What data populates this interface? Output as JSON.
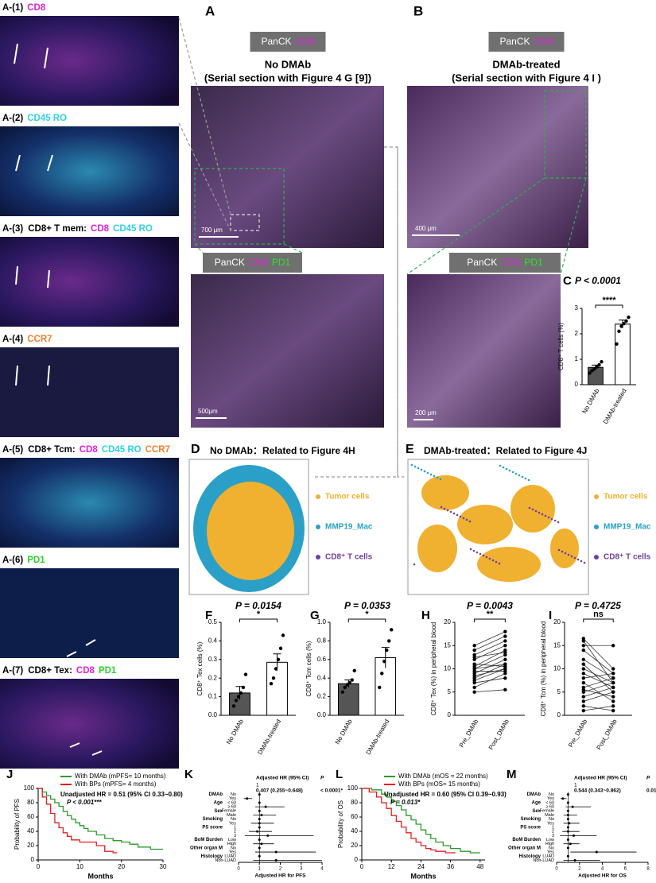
{
  "tiles": [
    {
      "id": "A-(1)",
      "markers": [
        {
          "text": "CD8",
          "color": "#e020e0"
        }
      ]
    },
    {
      "id": "A-(2)",
      "markers": [
        {
          "text": "CD45 RO",
          "color": "#30d0e0"
        }
      ]
    },
    {
      "id": "A-(3)",
      "prefix": "CD8+ T mem:",
      "markers": [
        {
          "text": "CD8",
          "color": "#e020e0"
        },
        {
          "text": "CD45 RO",
          "color": "#30d0e0"
        }
      ]
    },
    {
      "id": "A-(4)",
      "markers": [
        {
          "text": "CCR7",
          "color": "#f08030"
        }
      ]
    },
    {
      "id": "A-(5)",
      "prefix": "CD8+ Tcm:",
      "markers": [
        {
          "text": "CD8",
          "color": "#e020e0"
        },
        {
          "text": "CD45 RO",
          "color": "#30d0e0"
        },
        {
          "text": "CCR7",
          "color": "#f08030"
        }
      ]
    },
    {
      "id": "A-(6)",
      "markers": [
        {
          "text": "PD1",
          "color": "#30d030"
        }
      ]
    },
    {
      "id": "A-(7)",
      "prefix": "CD8+ Tex:",
      "markers": [
        {
          "text": "CD8",
          "color": "#e020e0"
        },
        {
          "text": "PD1",
          "color": "#30d030"
        }
      ]
    }
  ],
  "panel_a": {
    "letter": "A",
    "badge": [
      {
        "text": "PanCK",
        "color": "#ffffff"
      },
      {
        "text": "CD8",
        "color": "#e020e0"
      }
    ],
    "title": "No DMAb",
    "subtitle": "(Serial section with Figure 4 G [9])",
    "scale_top": "700 μm",
    "badge2": [
      {
        "text": "PanCK",
        "color": "#ffffff"
      },
      {
        "text": "CD8",
        "color": "#e020e0"
      },
      {
        "text": "PD1",
        "color": "#30e030"
      }
    ],
    "scale_bottom": "500μm"
  },
  "panel_b": {
    "letter": "B",
    "badge": [
      {
        "text": "PanCK",
        "color": "#ffffff"
      },
      {
        "text": "CD8",
        "color": "#e020e0"
      }
    ],
    "title": "DMAb-treated",
    "subtitle": "(Serial section with Figure 4 I )",
    "scale_top": "400 μm",
    "badge2": [
      {
        "text": "PanCK",
        "color": "#ffffff"
      },
      {
        "text": "CD8",
        "color": "#e020e0"
      },
      {
        "text": "PD1",
        "color": "#30e030"
      }
    ],
    "scale_bottom": "200 μm"
  },
  "panel_d": {
    "letter": "D",
    "title": "No DMAb：Related to Figure 4H",
    "legend": [
      {
        "text": "Tumor cells",
        "color": "#f0b030"
      },
      {
        "text": "MMP19_Mac",
        "color": "#2aa0c8"
      },
      {
        "text": "CD8⁺ T cells",
        "color": "#7040a0"
      }
    ]
  },
  "panel_e": {
    "letter": "E",
    "title": "DMAb-treated：Related to Figure 4J",
    "legend": [
      {
        "text": "Tumor cells",
        "color": "#f0b030"
      },
      {
        "text": "MMP19_Mac",
        "color": "#2aa0c8"
      },
      {
        "text": "CD8⁺ T cells",
        "color": "#7040a0"
      }
    ]
  },
  "chart_data": [
    {
      "type": "bar",
      "letter": "C",
      "title": "P < 0.0001",
      "significance": "****",
      "ylabel": "CD8⁺ T cells (%)",
      "categories": [
        "No DMAb",
        "DMAb-treated"
      ],
      "values": [
        0.68,
        2.38
      ],
      "errors": [
        0.09,
        0.16
      ],
      "points": [
        [
          0.45,
          0.55,
          0.62,
          0.7,
          0.78,
          0.9
        ],
        [
          1.6,
          2.1,
          2.3,
          2.4,
          2.5,
          2.65
        ]
      ],
      "colors": [
        "#555555",
        "#ffffff"
      ],
      "ylim": [
        0,
        3
      ],
      "yticks": [
        0,
        1,
        2,
        3
      ]
    },
    {
      "type": "bar",
      "letter": "F",
      "title": "P = 0.0154",
      "significance": "*",
      "ylabel": "CD8⁺ Tex cells (%)",
      "categories": [
        "No DMAb",
        "DMAb-treated"
      ],
      "values": [
        0.12,
        0.285
      ],
      "errors": [
        0.035,
        0.045
      ],
      "points": [
        [
          0.05,
          0.08,
          0.1,
          0.12,
          0.15,
          0.22
        ],
        [
          0.17,
          0.2,
          0.25,
          0.3,
          0.36,
          0.43
        ]
      ],
      "colors": [
        "#555555",
        "#ffffff"
      ],
      "ylim": [
        0,
        0.5
      ],
      "yticks": [
        {
          "value": 0,
          "label": "0.0"
        },
        0.1,
        0.2,
        0.3,
        0.4,
        0.5
      ]
    },
    {
      "type": "bar",
      "letter": "G",
      "title": "P = 0.0353",
      "significance": "*",
      "ylabel": "CD8⁺ Tcm cells (%)",
      "categories": [
        "No DMAb",
        "DMAb-treated"
      ],
      "values": [
        0.34,
        0.62
      ],
      "errors": [
        0.04,
        0.11
      ],
      "points": [
        [
          0.25,
          0.3,
          0.33,
          0.35,
          0.38,
          0.48
        ],
        [
          0.3,
          0.45,
          0.58,
          0.7,
          0.8,
          0.92
        ]
      ],
      "colors": [
        "#555555",
        "#ffffff"
      ],
      "ylim": [
        0,
        1
      ],
      "yticks": [
        {
          "value": 0,
          "label": "0.0"
        },
        0.2,
        0.4,
        0.6,
        0.8,
        {
          "value": 1,
          "label": "1.0"
        }
      ]
    },
    {
      "type": "paired",
      "letter": "H",
      "title": "P = 0.0043",
      "significance": "**",
      "ylabel": "CD8⁺ Tex (%) in peripheral blood",
      "categories": [
        "Pre_DMAb",
        "Post_DMAb"
      ],
      "pre": [
        5,
        6,
        7,
        7.5,
        8,
        8.5,
        9,
        9.5,
        10,
        10,
        10.5,
        11,
        12,
        12.5,
        13,
        14,
        15
      ],
      "post": [
        5.5,
        9,
        8,
        10,
        11,
        10,
        12,
        9.5,
        13,
        11,
        14,
        10.5,
        15,
        13.5,
        16,
        17,
        18
      ],
      "ylim": [
        0,
        20
      ],
      "yticks": [
        0,
        5,
        10,
        15,
        20
      ]
    },
    {
      "type": "paired",
      "letter": "I",
      "title": "P = 0.4725",
      "significance": "ns",
      "ylabel": "CD8⁺ Tcm (%) in peripheral blood",
      "categories": [
        "Pre_DMAb",
        "Post_DMAb"
      ],
      "pre": [
        1,
        2,
        3,
        4,
        5,
        5.5,
        6,
        7,
        8,
        9,
        10,
        11,
        12,
        14,
        15,
        16,
        16.5
      ],
      "post": [
        2,
        1,
        5,
        6,
        7,
        4,
        8,
        3,
        9,
        6,
        7,
        5,
        8,
        9,
        15,
        7,
        10
      ],
      "ylim": [
        0,
        20
      ],
      "yticks": [
        0,
        5,
        10,
        15,
        20
      ]
    },
    {
      "type": "km",
      "letter": "J",
      "ylabel": "Probability of PFS",
      "xlabel": "Months",
      "hr_text": "Unadjusted HR = 0.51 (95% CI 0.33~0.80)",
      "p_text": "P < 0.001***",
      "xlim": [
        0,
        30
      ],
      "xticks": [
        0,
        10,
        20,
        30
      ],
      "ylim": [
        0,
        100
      ],
      "yticks": [
        0,
        20,
        40,
        60,
        80,
        100
      ],
      "series": [
        {
          "name": "With DMAb (mPFS= 10 months)",
          "color": "#2a9a2a",
          "x": [
            0,
            1,
            2,
            3,
            4,
            5,
            6,
            7,
            8,
            9,
            10,
            11,
            12,
            14,
            16,
            18,
            20,
            22,
            24,
            27,
            30
          ],
          "y": [
            100,
            95,
            90,
            85,
            80,
            75,
            68,
            62,
            57,
            52,
            48,
            44,
            40,
            35,
            30,
            27,
            25,
            22,
            18,
            15,
            15
          ]
        },
        {
          "name": "With BPs (mPFS= 4 months)",
          "color": "#e02020",
          "x": [
            0,
            1,
            2,
            3,
            4,
            5,
            6,
            7,
            8,
            10,
            12,
            14,
            16,
            18,
            19
          ],
          "y": [
            100,
            88,
            78,
            65,
            52,
            45,
            38,
            33,
            28,
            25,
            25,
            20,
            12,
            10,
            10
          ]
        }
      ]
    },
    {
      "type": "forest",
      "letter": "K",
      "xlabel": "Adjusted HR for PFS",
      "header": [
        "Adjusted HR (95% CI)",
        "P"
      ],
      "ref_text": "1",
      "hr_text": "0.407 (0.255~0.648)",
      "p_text": "< 0.0001*",
      "reference_line": 1,
      "xlim": [
        0,
        4
      ],
      "xticks": [
        0,
        1,
        2,
        3,
        4
      ],
      "rows": [
        {
          "group": "DMAb",
          "level": "No",
          "hr": 1
        },
        {
          "level": "Yes",
          "hr": 0.407,
          "lo": 0.255,
          "hi": 0.648
        },
        {
          "group": "Age",
          "level": "< 60",
          "hr": 1
        },
        {
          "level": "≥ 60",
          "hr": 1.3,
          "lo": 0.8,
          "hi": 2.2
        },
        {
          "group": "Sex",
          "level": "Female",
          "hr": 1
        },
        {
          "level": "Male",
          "hr": 1.1,
          "lo": 0.7,
          "hi": 1.8
        },
        {
          "group": "Smoking",
          "level": "No",
          "hr": 1
        },
        {
          "level": "Yes",
          "hr": 1,
          "lo": 0.6,
          "hi": 1.7
        },
        {
          "group": "PS score",
          "level": "1",
          "hr": 1
        },
        {
          "level": "2",
          "hr": 0.9,
          "lo": 0.5,
          "hi": 1.6
        },
        {
          "level": "3",
          "hr": 1.4,
          "lo": 0.3,
          "hi": 3.6
        },
        {
          "group": "BoM Burden",
          "level": "Low",
          "hr": 1
        },
        {
          "level": "High",
          "hr": 1.1,
          "lo": 0.7,
          "hi": 1.7
        },
        {
          "group": "Other organ M",
          "level": "No",
          "hr": 1
        },
        {
          "level": "Yes",
          "hr": 1.8,
          "lo": 0.8,
          "hi": 3.7
        },
        {
          "group": "Histology",
          "level": "LUAD",
          "hr": 1
        },
        {
          "level": "Non-LUAD",
          "hr": 1.8,
          "lo": 0.7,
          "hi": 4
        }
      ]
    },
    {
      "type": "km",
      "letter": "L",
      "ylabel": "Probability of OS",
      "xlabel": "Months",
      "hr_text": "Unadjusted HR = 0.60 (95% CI 0.39~0.93)",
      "p_text": "P = 0.013*",
      "xlim": [
        0,
        50
      ],
      "xticks": [
        0,
        12,
        24,
        36,
        48
      ],
      "ylim": [
        0,
        100
      ],
      "yticks": [
        0,
        20,
        40,
        60,
        80,
        100
      ],
      "series": [
        {
          "name": "With DMAb (mOS = 22 months)",
          "color": "#2a9a2a",
          "x": [
            0,
            4,
            8,
            10,
            12,
            14,
            16,
            18,
            20,
            22,
            24,
            26,
            28,
            30,
            33,
            36,
            40,
            44,
            48
          ],
          "y": [
            100,
            98,
            92,
            88,
            82,
            76,
            70,
            62,
            56,
            50,
            42,
            36,
            30,
            25,
            20,
            16,
            12,
            10,
            10
          ]
        },
        {
          "name": "With BPs (mOS= 15 months)",
          "color": "#e02020",
          "x": [
            0,
            3,
            6,
            8,
            10,
            12,
            14,
            16,
            18,
            20,
            22,
            24,
            26,
            28,
            30,
            34,
            38
          ],
          "y": [
            100,
            95,
            88,
            80,
            72,
            62,
            54,
            46,
            38,
            30,
            25,
            20,
            16,
            14,
            12,
            10,
            10
          ]
        }
      ]
    },
    {
      "type": "forest",
      "letter": "M",
      "xlabel": "Adjusted HR for OS",
      "header": [
        "Adjusted HR (95% CI)",
        "P"
      ],
      "ref_text": "1",
      "hr_text": "0.544 (0.343~0.862)",
      "p_text": "0.01*",
      "reference_line": 1,
      "xlim": [
        0,
        8
      ],
      "xticks": [
        0,
        2,
        4,
        6,
        8
      ],
      "rows": [
        {
          "group": "DMAb",
          "level": "No",
          "hr": 1
        },
        {
          "level": "Yes",
          "hr": 0.544,
          "lo": 0.343,
          "hi": 0.862
        },
        {
          "group": "Age",
          "level": "< 60",
          "hr": 1
        },
        {
          "level": "≥ 60",
          "hr": 1.4,
          "lo": 0.8,
          "hi": 3
        },
        {
          "group": "Sex",
          "level": "Female",
          "hr": 1
        },
        {
          "level": "Male",
          "hr": 1,
          "lo": 0.6,
          "hi": 1.8
        },
        {
          "group": "Smoking",
          "level": "No",
          "hr": 1
        },
        {
          "level": "Yes",
          "hr": 1.1,
          "lo": 0.6,
          "hi": 2
        },
        {
          "group": "PS score",
          "level": "1",
          "hr": 1
        },
        {
          "level": "2",
          "hr": 1,
          "lo": 0.5,
          "hi": 2
        },
        {
          "level": "3",
          "hr": 1.5,
          "lo": 0.3,
          "hi": 3.5
        },
        {
          "group": "BoM Burden",
          "level": "Low",
          "hr": 1
        },
        {
          "level": "High",
          "hr": 1.2,
          "lo": 0.6,
          "hi": 2
        },
        {
          "group": "Other organ M",
          "level": "No",
          "hr": 1
        },
        {
          "level": "Yes",
          "hr": 3.5,
          "lo": 1.2,
          "hi": 7
        },
        {
          "group": "Histology",
          "level": "LUAD",
          "hr": 1
        },
        {
          "level": "Non-LUAD",
          "hr": 1.6,
          "lo": 0.6,
          "hi": 3.8
        }
      ]
    }
  ]
}
